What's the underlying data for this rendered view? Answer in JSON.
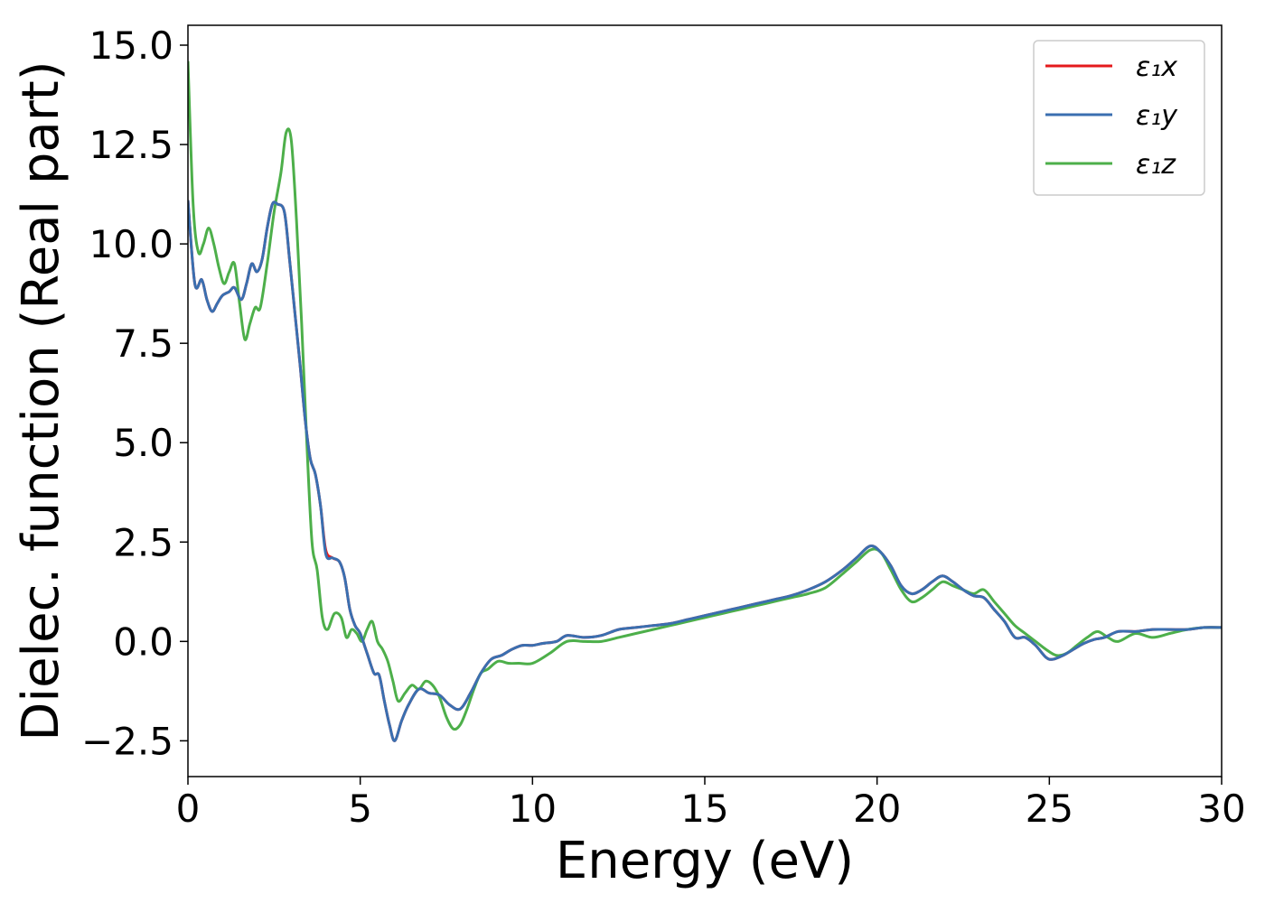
{
  "chart_data": {
    "type": "line",
    "title": "",
    "xlabel": "Energy (eV)",
    "ylabel": "Dielec. function (Real part)",
    "xlim": [
      0,
      30
    ],
    "ylim": [
      -3.4,
      15.5
    ],
    "xticks": [
      0,
      5,
      10,
      15,
      20,
      25,
      30
    ],
    "yticks": [
      -2.5,
      0.0,
      2.5,
      5.0,
      7.5,
      10.0,
      12.5,
      15.0
    ],
    "xtick_labels": [
      "0",
      "5",
      "10",
      "15",
      "20",
      "25",
      "30"
    ],
    "ytick_labels": [
      "−2.5",
      "0.0",
      "2.5",
      "5.0",
      "7.5",
      "10.0",
      "12.5",
      "15.0"
    ],
    "grid": false,
    "legend_position": "top-right",
    "series": [
      {
        "name": "ε₁x",
        "color": "#e41a1c",
        "x": [
          0,
          0.2,
          0.4,
          0.55,
          0.7,
          0.85,
          1.0,
          1.2,
          1.35,
          1.55,
          1.7,
          1.85,
          2.0,
          2.15,
          2.3,
          2.45,
          2.6,
          2.8,
          2.95,
          3.1,
          3.25,
          3.4,
          3.55,
          3.7,
          3.85,
          4.0,
          4.2,
          4.4,
          4.55,
          4.7,
          4.85,
          5.0,
          5.2,
          5.4,
          5.55,
          5.7,
          5.85,
          6.0,
          6.2,
          6.4,
          6.7,
          7.0,
          7.3,
          7.6,
          7.9,
          8.2,
          8.5,
          8.8,
          9.1,
          9.4,
          9.7,
          10.0,
          10.3,
          10.7,
          11.0,
          11.5,
          12.0,
          12.5,
          13.0,
          13.5,
          14.0,
          14.5,
          15.0,
          15.5,
          16.0,
          16.5,
          17.0,
          17.5,
          18.0,
          18.5,
          19.0,
          19.4,
          19.8,
          20.1,
          20.4,
          20.7,
          21.0,
          21.3,
          21.6,
          21.9,
          22.2,
          22.5,
          22.8,
          23.1,
          23.4,
          23.7,
          24.0,
          24.3,
          24.6,
          24.9,
          25.1,
          25.4,
          25.7,
          26.0,
          26.3,
          26.6,
          27.0,
          27.5,
          28.0,
          28.5,
          29.0,
          29.5,
          30.0
        ],
        "values": [
          11.1,
          9.0,
          9.1,
          8.6,
          8.3,
          8.5,
          8.7,
          8.8,
          8.9,
          8.6,
          9.0,
          9.5,
          9.3,
          9.6,
          10.4,
          11.0,
          11.0,
          10.8,
          9.6,
          8.3,
          7.0,
          5.6,
          4.6,
          4.2,
          3.4,
          2.3,
          2.1,
          2.0,
          1.6,
          0.8,
          0.4,
          0.2,
          -0.3,
          -0.8,
          -0.85,
          -1.5,
          -2.1,
          -2.5,
          -2.0,
          -1.6,
          -1.2,
          -1.3,
          -1.35,
          -1.6,
          -1.7,
          -1.3,
          -0.8,
          -0.45,
          -0.35,
          -0.2,
          -0.1,
          -0.1,
          -0.05,
          0.0,
          0.15,
          0.1,
          0.15,
          0.3,
          0.35,
          0.4,
          0.45,
          0.55,
          0.65,
          0.75,
          0.85,
          0.95,
          1.05,
          1.15,
          1.3,
          1.5,
          1.8,
          2.1,
          2.4,
          2.25,
          1.9,
          1.4,
          1.2,
          1.3,
          1.5,
          1.65,
          1.5,
          1.3,
          1.15,
          1.1,
          0.8,
          0.5,
          0.1,
          0.1,
          -0.1,
          -0.4,
          -0.45,
          -0.35,
          -0.2,
          -0.05,
          0.05,
          0.1,
          0.25,
          0.25,
          0.3,
          0.3,
          0.3,
          0.35,
          0.35
        ]
      },
      {
        "name": "ε₁y",
        "color": "#3a6fb0",
        "x": [
          0,
          0.2,
          0.4,
          0.55,
          0.7,
          0.85,
          1.0,
          1.2,
          1.35,
          1.55,
          1.7,
          1.85,
          2.0,
          2.15,
          2.3,
          2.45,
          2.6,
          2.8,
          2.95,
          3.1,
          3.25,
          3.4,
          3.55,
          3.7,
          3.85,
          4.0,
          4.2,
          4.4,
          4.55,
          4.7,
          4.85,
          5.0,
          5.2,
          5.4,
          5.55,
          5.7,
          5.85,
          6.0,
          6.2,
          6.4,
          6.7,
          7.0,
          7.3,
          7.6,
          7.9,
          8.2,
          8.5,
          8.8,
          9.1,
          9.4,
          9.7,
          10.0,
          10.3,
          10.7,
          11.0,
          11.5,
          12.0,
          12.5,
          13.0,
          13.5,
          14.0,
          14.5,
          15.0,
          15.5,
          16.0,
          16.5,
          17.0,
          17.5,
          18.0,
          18.5,
          19.0,
          19.4,
          19.8,
          20.1,
          20.4,
          20.7,
          21.0,
          21.3,
          21.6,
          21.9,
          22.2,
          22.5,
          22.8,
          23.1,
          23.4,
          23.7,
          24.0,
          24.3,
          24.6,
          24.9,
          25.1,
          25.4,
          25.7,
          26.0,
          26.3,
          26.6,
          27.0,
          27.5,
          28.0,
          28.5,
          29.0,
          29.5,
          30.0
        ],
        "values": [
          11.1,
          9.0,
          9.1,
          8.6,
          8.3,
          8.5,
          8.7,
          8.8,
          8.9,
          8.6,
          9.0,
          9.5,
          9.3,
          9.6,
          10.4,
          11.0,
          11.0,
          10.8,
          9.6,
          8.3,
          7.0,
          5.6,
          4.6,
          4.2,
          3.4,
          2.2,
          2.1,
          2.0,
          1.6,
          0.8,
          0.4,
          0.2,
          -0.3,
          -0.8,
          -0.85,
          -1.5,
          -2.1,
          -2.5,
          -2.0,
          -1.6,
          -1.2,
          -1.3,
          -1.35,
          -1.6,
          -1.7,
          -1.3,
          -0.8,
          -0.45,
          -0.35,
          -0.2,
          -0.1,
          -0.1,
          -0.05,
          0.0,
          0.15,
          0.1,
          0.15,
          0.3,
          0.35,
          0.4,
          0.45,
          0.55,
          0.65,
          0.75,
          0.85,
          0.95,
          1.05,
          1.15,
          1.3,
          1.5,
          1.8,
          2.1,
          2.4,
          2.25,
          1.9,
          1.4,
          1.2,
          1.3,
          1.5,
          1.65,
          1.5,
          1.3,
          1.15,
          1.1,
          0.8,
          0.5,
          0.1,
          0.1,
          -0.1,
          -0.4,
          -0.45,
          -0.35,
          -0.2,
          -0.05,
          0.05,
          0.1,
          0.25,
          0.25,
          0.3,
          0.3,
          0.3,
          0.35,
          0.35
        ]
      },
      {
        "name": "ε₁z",
        "color": "#4daf4a",
        "x": [
          0,
          0.15,
          0.3,
          0.45,
          0.6,
          0.75,
          0.9,
          1.05,
          1.2,
          1.35,
          1.5,
          1.65,
          1.8,
          1.95,
          2.1,
          2.3,
          2.5,
          2.7,
          2.85,
          3.0,
          3.15,
          3.3,
          3.45,
          3.6,
          3.75,
          3.9,
          4.05,
          4.25,
          4.45,
          4.6,
          4.75,
          4.9,
          5.05,
          5.2,
          5.35,
          5.5,
          5.65,
          5.8,
          5.95,
          6.1,
          6.3,
          6.5,
          6.7,
          6.9,
          7.1,
          7.3,
          7.5,
          7.7,
          7.9,
          8.1,
          8.3,
          8.5,
          8.7,
          9.0,
          9.3,
          9.6,
          10.0,
          10.5,
          11.0,
          11.5,
          12.0,
          12.5,
          13.0,
          13.5,
          14.0,
          14.5,
          15.0,
          15.5,
          16.0,
          16.5,
          17.0,
          17.5,
          18.0,
          18.5,
          19.0,
          19.4,
          19.8,
          20.1,
          20.4,
          20.7,
          21.0,
          21.3,
          21.6,
          21.9,
          22.2,
          22.5,
          22.8,
          23.1,
          23.4,
          23.7,
          24.0,
          24.3,
          24.6,
          24.9,
          25.2,
          25.5,
          25.8,
          26.1,
          26.4,
          26.7,
          27.0,
          27.5,
          28.0,
          28.5,
          29.0,
          29.5,
          30.0
        ],
        "values": [
          14.6,
          11.0,
          9.8,
          10.0,
          10.4,
          10.0,
          9.4,
          9.0,
          9.3,
          9.5,
          8.5,
          7.6,
          8.0,
          8.4,
          8.4,
          9.5,
          10.8,
          11.8,
          12.8,
          12.6,
          10.6,
          8.0,
          5.0,
          2.5,
          1.8,
          0.6,
          0.3,
          0.7,
          0.6,
          0.1,
          0.3,
          0.2,
          0.0,
          0.3,
          0.5,
          0.0,
          -0.2,
          -0.5,
          -1.0,
          -1.5,
          -1.3,
          -1.1,
          -1.2,
          -1.0,
          -1.1,
          -1.4,
          -1.9,
          -2.2,
          -2.1,
          -1.7,
          -1.2,
          -0.8,
          -0.7,
          -0.5,
          -0.55,
          -0.55,
          -0.55,
          -0.3,
          0.0,
          0.0,
          0.0,
          0.1,
          0.2,
          0.3,
          0.4,
          0.5,
          0.6,
          0.7,
          0.8,
          0.9,
          1.0,
          1.1,
          1.2,
          1.35,
          1.7,
          2.0,
          2.3,
          2.25,
          1.8,
          1.3,
          1.0,
          1.1,
          1.3,
          1.5,
          1.4,
          1.3,
          1.2,
          1.3,
          1.0,
          0.7,
          0.4,
          0.2,
          0.0,
          -0.2,
          -0.35,
          -0.3,
          -0.1,
          0.1,
          0.25,
          0.1,
          0.0,
          0.2,
          0.1,
          0.2,
          0.3,
          0.35,
          0.35
        ]
      }
    ]
  }
}
